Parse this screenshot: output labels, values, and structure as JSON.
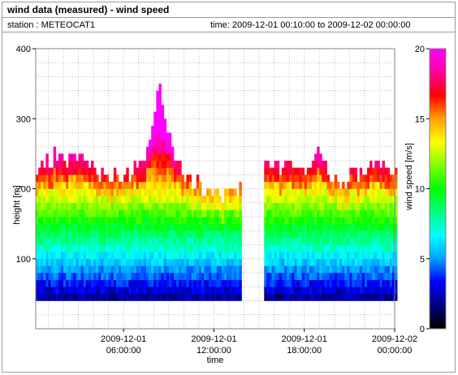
{
  "header": {
    "title": "wind data (measured) - wind speed",
    "station": "station : METEOCAT1",
    "time_range": "time: 2009-12-01 00:10:00 to 2009-12-02 00:00:00"
  },
  "colors": {
    "colormap": [
      "#000000",
      "#000080",
      "#0000ff",
      "#00a0ff",
      "#00ffff",
      "#00ff80",
      "#00ff00",
      "#80ff00",
      "#ffff00",
      "#ffa000",
      "#ff0000",
      "#ff00a0",
      "#ff00ff"
    ],
    "grid": "#bfbfbf",
    "missing": "#ffffff"
  },
  "chart_data": {
    "type": "heatmap",
    "xlabel": "time",
    "ylabel": "height [m]",
    "colorbar_label": "wind speed [m/s]",
    "x_range": [
      "2009-12-01 00:10:00",
      "2009-12-02 00:00:00"
    ],
    "ylim": [
      0,
      400
    ],
    "y_ticks": [
      100,
      200,
      300,
      400
    ],
    "x_ticks": [
      {
        "value": "2009-12-01 06:00:00",
        "date": "2009-12-01",
        "time": "06:00:00"
      },
      {
        "value": "2009-12-01 12:00:00",
        "date": "2009-12-01",
        "time": "12:00:00"
      },
      {
        "value": "2009-12-01 18:00:00",
        "date": "2009-12-01",
        "time": "18:00:00"
      },
      {
        "value": "2009-12-02 00:00:00",
        "date": "2009-12-02",
        "time": "00:00:00"
      }
    ],
    "colorbar_range": [
      0,
      20
    ],
    "colorbar_ticks": [
      0,
      5,
      10,
      15,
      20
    ],
    "data_gap": [
      "2009-12-01 13:40:00",
      "2009-12-01 15:20:00"
    ],
    "profile_min_height": 40,
    "grid": true
  }
}
